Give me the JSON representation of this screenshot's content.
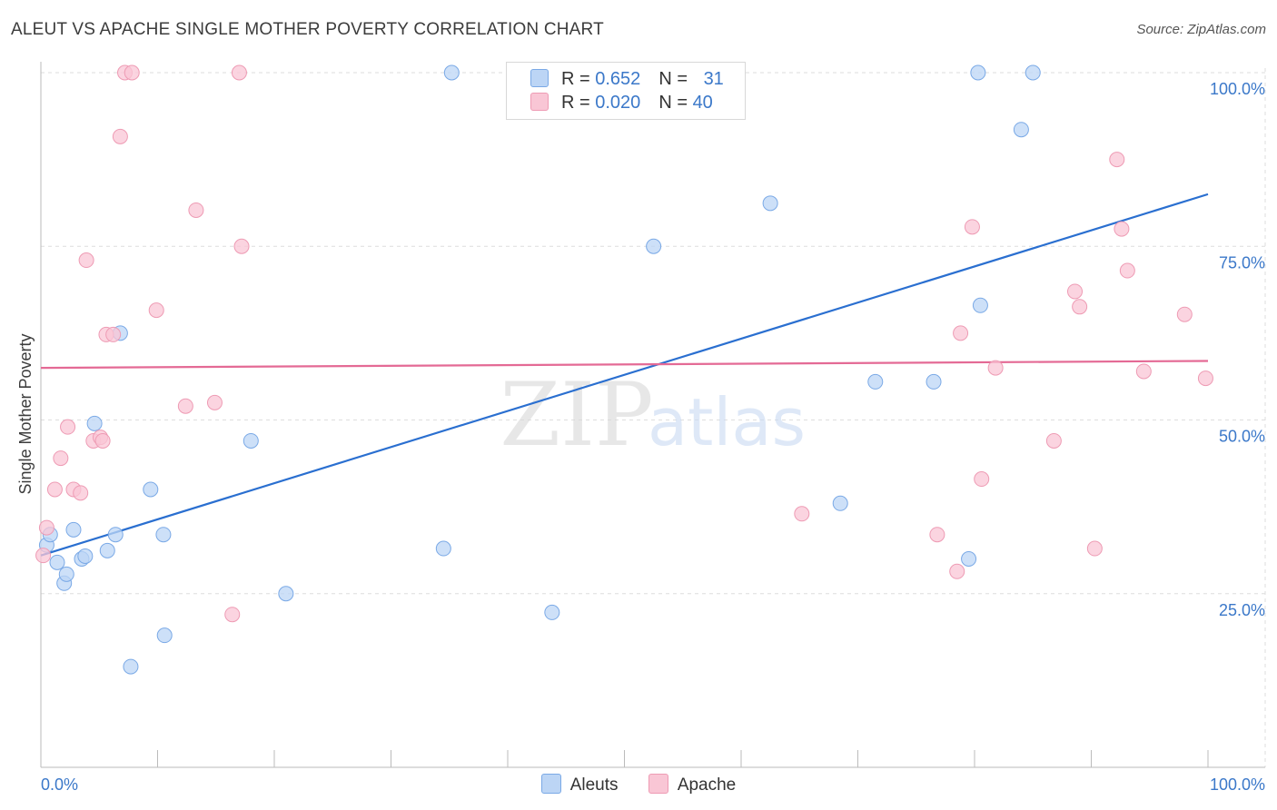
{
  "title": "ALEUT VS APACHE SINGLE MOTHER POVERTY CORRELATION CHART",
  "source": "Source: ZipAtlas.com",
  "watermark": {
    "zip": "ZIP",
    "atlas": "atlas"
  },
  "colors": {
    "aleut_fill": "#bcd5f5",
    "aleut_stroke": "#7aa9e6",
    "aleut_line": "#2a6fd0",
    "apache_fill": "#f9c6d5",
    "apache_stroke": "#ee9bb4",
    "apache_line": "#e46a95",
    "grid": "#dedede",
    "axis": "#bbbbbb",
    "tick_text": "#3b78c9"
  },
  "legend": {
    "rows": [
      {
        "r_label": "R = ",
        "r_value": "0.652",
        "n_label": "N = ",
        "n_value": "31"
      },
      {
        "r_label": "R = ",
        "r_value": "0.020",
        "n_label": "N = ",
        "n_value": "40"
      }
    ]
  },
  "chart_data": {
    "type": "scatter",
    "title": "ALEUT VS APACHE SINGLE MOTHER POVERTY CORRELATION CHART",
    "xlabel": "",
    "ylabel": "Single Mother Poverty",
    "xlim": [
      0,
      100
    ],
    "ylim": [
      0,
      102
    ],
    "x_tick_labels": [
      "0.0%",
      "100.0%"
    ],
    "y_ticks": [
      25,
      50,
      75,
      100
    ],
    "y_tick_labels": [
      "25.0%",
      "50.0%",
      "75.0%",
      "100.0%"
    ],
    "grid": true,
    "series": [
      {
        "name": "Aleuts",
        "trend": {
          "x": [
            0,
            100
          ],
          "y": [
            30.5,
            82.5
          ]
        },
        "points": [
          [
            0.5,
            32
          ],
          [
            0.8,
            33.5
          ],
          [
            1.4,
            29.5
          ],
          [
            2.0,
            26.5
          ],
          [
            2.2,
            27.8
          ],
          [
            2.8,
            34.2
          ],
          [
            3.5,
            30
          ],
          [
            3.8,
            30.4
          ],
          [
            4.6,
            49.5
          ],
          [
            5.7,
            31.2
          ],
          [
            6.4,
            33.5
          ],
          [
            6.8,
            62.5
          ],
          [
            7.7,
            14.5
          ],
          [
            9.4,
            40
          ],
          [
            10.5,
            33.5
          ],
          [
            10.6,
            19
          ],
          [
            18.0,
            47
          ],
          [
            21.0,
            25
          ],
          [
            34.5,
            31.5
          ],
          [
            35.2,
            100
          ],
          [
            43.8,
            22.3
          ],
          [
            52.5,
            75
          ],
          [
            62.5,
            81.2
          ],
          [
            68.5,
            38
          ],
          [
            71.5,
            55.5
          ],
          [
            76.5,
            55.5
          ],
          [
            79.5,
            30
          ],
          [
            80.3,
            100
          ],
          [
            80.5,
            66.5
          ],
          [
            84.0,
            91.8
          ],
          [
            85.0,
            100
          ]
        ]
      },
      {
        "name": "Apache",
        "trend": {
          "x": [
            0,
            100
          ],
          "y": [
            57.5,
            58.5
          ]
        },
        "points": [
          [
            0.2,
            30.5
          ],
          [
            0.5,
            34.5
          ],
          [
            1.2,
            40
          ],
          [
            1.7,
            44.5
          ],
          [
            2.3,
            49
          ],
          [
            2.8,
            40
          ],
          [
            3.4,
            39.5
          ],
          [
            3.9,
            73
          ],
          [
            4.5,
            47
          ],
          [
            5.1,
            47.5
          ],
          [
            5.3,
            47
          ],
          [
            5.6,
            62.3
          ],
          [
            6.2,
            62.3
          ],
          [
            6.8,
            90.8
          ],
          [
            7.2,
            100
          ],
          [
            7.8,
            100
          ],
          [
            9.9,
            65.8
          ],
          [
            12.4,
            52
          ],
          [
            13.3,
            80.2
          ],
          [
            14.9,
            52.5
          ],
          [
            16.4,
            22
          ],
          [
            17.0,
            100
          ],
          [
            17.2,
            75
          ],
          [
            65.2,
            36.5
          ],
          [
            76.8,
            33.5
          ],
          [
            78.5,
            28.2
          ],
          [
            78.8,
            62.5
          ],
          [
            79.8,
            77.8
          ],
          [
            80.6,
            41.5
          ],
          [
            81.8,
            57.5
          ],
          [
            86.8,
            47
          ],
          [
            88.6,
            68.5
          ],
          [
            89.0,
            66.3
          ],
          [
            90.3,
            31.5
          ],
          [
            92.2,
            87.5
          ],
          [
            92.6,
            77.5
          ],
          [
            93.1,
            71.5
          ],
          [
            94.5,
            57
          ],
          [
            98.0,
            65.2
          ],
          [
            99.8,
            56
          ]
        ]
      }
    ]
  }
}
